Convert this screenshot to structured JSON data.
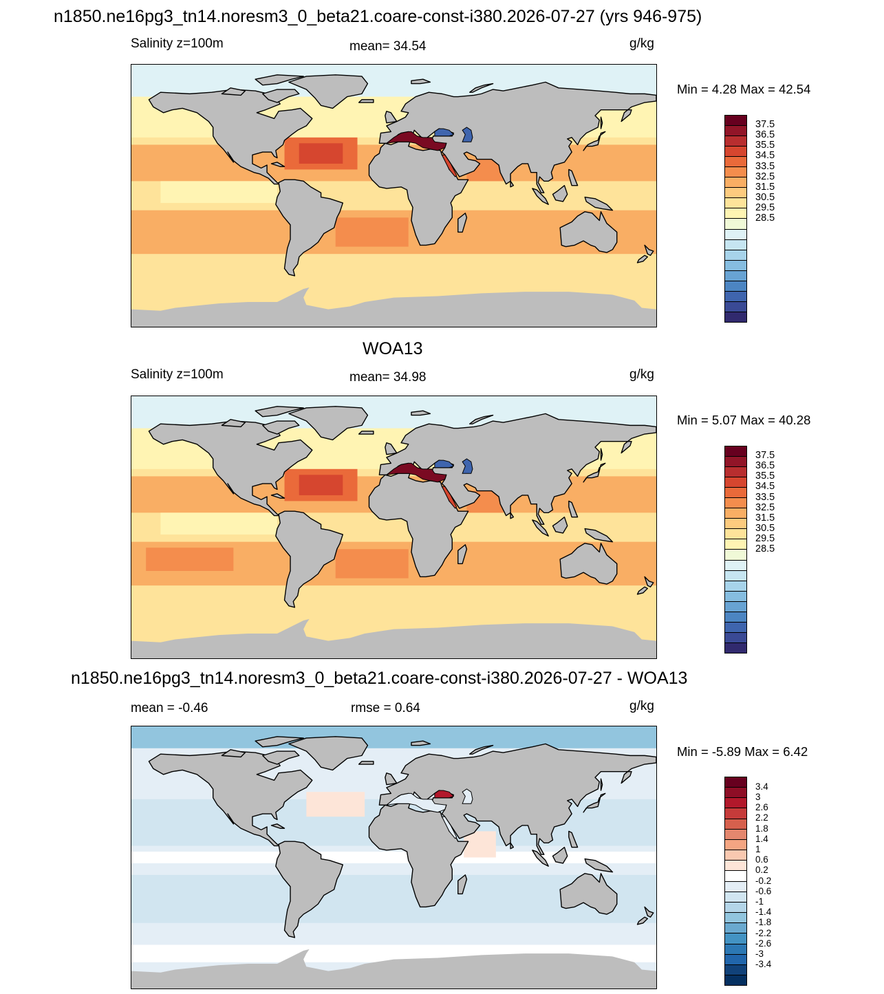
{
  "main_title": "n1850.ne16pg3_tn14.noresm3_0_beta21.coare-const-i380.2026-07-27 (yrs 946-975)",
  "colors": {
    "land": "#bdbdbd",
    "coast": "#000000"
  },
  "panels": [
    {
      "id": "model",
      "left_label": "Salinity z=100m",
      "center_label": "mean=  34.54",
      "right_label": "g/kg",
      "minmax": "Min =    4.28 Max =  42.54",
      "field": "model"
    },
    {
      "id": "obs",
      "header": "WOA13",
      "left_label": "Salinity z=100m",
      "center_label": "mean=  34.98",
      "right_label": "g/kg",
      "minmax": "Min =    5.07 Max =  40.28",
      "field": "obs"
    },
    {
      "id": "diff",
      "header": "n1850.ne16pg3_tn14.noresm3_0_beta21.coare-const-i380.2026-07-27 - WOA13",
      "left_label": "mean =  -0.46",
      "center_label": "rmse =   0.64",
      "right_label": "g/kg",
      "minmax": "Min =  -5.89 Max =   6.42",
      "field": "diff"
    }
  ],
  "colorbars": {
    "salinity": {
      "labels": [
        "37.5",
        "36.5",
        "35.5",
        "34.5",
        "33.5",
        "32.5",
        "31.5",
        "30.5",
        "29.5",
        "28.5"
      ],
      "colors": [
        "#67001f",
        "#921528",
        "#b82e2f",
        "#d6462f",
        "#ea6a3a",
        "#f48d4d",
        "#f9ae64",
        "#fdcb7f",
        "#fee39a",
        "#fff4b3",
        "#f0f9d7",
        "#dff2f6",
        "#c6e5f1",
        "#a7d3ea",
        "#86bde0",
        "#68a3d3",
        "#4c85c2",
        "#3f65ae",
        "#3a4a95",
        "#312a6e"
      ]
    },
    "difference": {
      "labels": [
        "3.4",
        "3",
        "2.6",
        "2.2",
        "1.8",
        "1.4",
        "1",
        "0.6",
        "0.2",
        "-0.2",
        "-0.6",
        "-1",
        "-1.4",
        "-1.8",
        "-2.2",
        "-2.6",
        "-3",
        "-3.4"
      ],
      "colors": [
        "#67001f",
        "#8e0e26",
        "#b2182b",
        "#c63b3a",
        "#d6604d",
        "#e4876e",
        "#f4a582",
        "#f9c8b0",
        "#fde5d8",
        "#ffffff",
        "#e4eef6",
        "#d1e5f0",
        "#b4d5e8",
        "#92c5de",
        "#6aa9cf",
        "#4393c3",
        "#2c78b4",
        "#2166ac",
        "#11427a",
        "#053061"
      ]
    }
  }
}
